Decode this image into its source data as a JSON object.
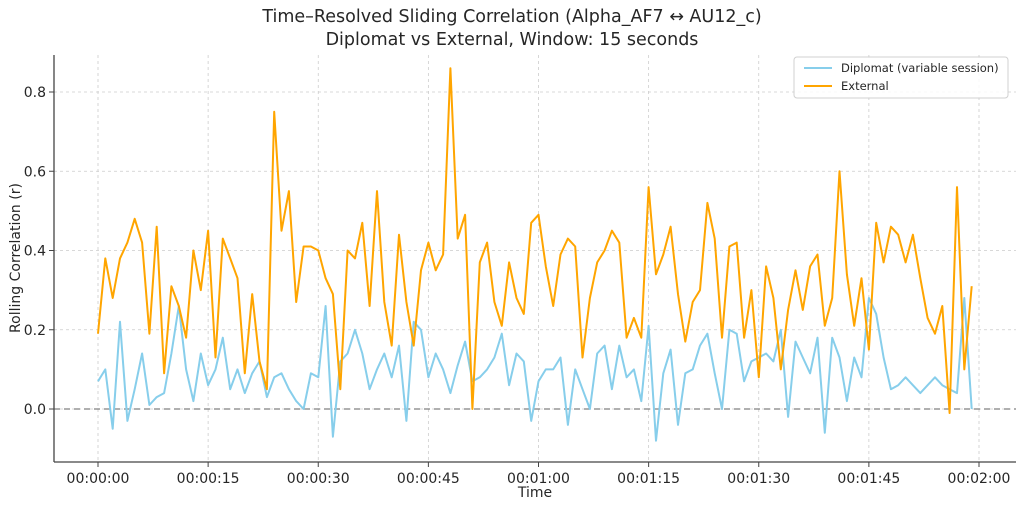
{
  "chart_data": {
    "type": "line",
    "title": "Time–Resolved Sliding Correlation (Alpha_AF7 ↔ AU12_c)",
    "subtitle": "Diplomat vs External, Window: 15 seconds",
    "xlabel": "Time",
    "ylabel": "Rolling Correlation (r)",
    "xlim_seconds": [
      -5.9,
      125.8
    ],
    "ylim": [
      -0.13,
      0.9
    ],
    "x_ticks": [
      "00:00:00",
      "00:00:15",
      "00:00:30",
      "00:00:45",
      "00:01:00",
      "00:01:15",
      "00:01:30",
      "00:01:45",
      "00:02:00"
    ],
    "x_tick_seconds": [
      0,
      15,
      30,
      45,
      60,
      75,
      90,
      105,
      120
    ],
    "y_ticks": [
      "0.0",
      "0.2",
      "0.4",
      "0.6",
      "0.8"
    ],
    "y_tick_values": [
      0.0,
      0.2,
      0.4,
      0.6,
      0.8
    ],
    "grid": true,
    "reference_line": {
      "y": 0.0,
      "style": "dashed",
      "color": "#808080"
    },
    "legend_position": "upper right",
    "x_seconds": [
      0,
      1,
      2,
      3,
      4,
      5,
      6,
      7,
      8,
      9,
      10,
      11,
      12,
      13,
      14,
      15,
      16,
      17,
      18,
      19,
      20,
      21,
      22,
      23,
      24,
      25,
      26,
      27,
      28,
      29,
      30,
      31,
      32,
      33,
      34,
      35,
      36,
      37,
      38,
      39,
      40,
      41,
      42,
      43,
      44,
      45,
      46,
      47,
      48,
      49,
      50,
      51,
      52,
      53,
      54,
      55,
      56,
      57,
      58,
      59,
      60,
      61,
      62,
      63,
      64,
      65,
      66,
      67,
      68,
      69,
      70,
      71,
      72,
      73,
      74,
      75,
      76,
      77,
      78,
      79,
      80,
      81,
      82,
      83,
      84,
      85,
      86,
      87,
      88,
      89,
      90,
      91,
      92,
      93,
      94,
      95,
      96,
      97,
      98,
      99,
      100,
      101,
      102,
      103,
      104,
      105,
      106,
      107,
      108,
      109,
      110,
      111,
      112,
      113,
      114,
      115,
      116,
      117,
      118,
      119
    ],
    "series": [
      {
        "name": "Diplomat (variable session)",
        "color": "#87CEEB",
        "values": [
          0.07,
          0.1,
          -0.05,
          0.22,
          -0.03,
          0.05,
          0.14,
          0.01,
          0.03,
          0.04,
          0.14,
          0.26,
          0.1,
          0.02,
          0.14,
          0.06,
          0.1,
          0.18,
          0.05,
          0.1,
          0.04,
          0.09,
          0.12,
          0.03,
          0.08,
          0.09,
          0.05,
          0.02,
          0.0,
          0.09,
          0.08,
          0.26,
          -0.07,
          0.12,
          0.14,
          0.2,
          0.14,
          0.05,
          0.1,
          0.14,
          0.08,
          0.16,
          -0.03,
          0.22,
          0.2,
          0.08,
          0.14,
          0.1,
          0.04,
          0.11,
          0.17,
          0.07,
          0.08,
          0.1,
          0.13,
          0.19,
          0.06,
          0.14,
          0.12,
          -0.03,
          0.07,
          0.1,
          0.1,
          0.13,
          -0.04,
          0.1,
          0.05,
          0.0,
          0.14,
          0.16,
          0.05,
          0.16,
          0.08,
          0.1,
          0.02,
          0.21,
          -0.08,
          0.09,
          0.15,
          -0.04,
          0.09,
          0.1,
          0.16,
          0.19,
          0.09,
          0.0,
          0.2,
          0.19,
          0.07,
          0.12,
          0.13,
          0.14,
          0.12,
          0.2,
          -0.02,
          0.17,
          0.13,
          0.09,
          0.18,
          -0.06,
          0.18,
          0.13,
          0.02,
          0.13,
          0.08,
          0.28,
          0.24,
          0.13,
          0.05,
          0.06,
          0.08,
          0.06,
          0.04,
          0.06,
          0.08,
          0.06,
          0.05,
          0.04,
          0.28,
          0.0
        ]
      },
      {
        "name": "External",
        "color": "#FFA500",
        "values": [
          0.19,
          0.38,
          0.28,
          0.38,
          0.42,
          0.48,
          0.42,
          0.19,
          0.46,
          0.09,
          0.31,
          0.26,
          0.18,
          0.4,
          0.3,
          0.45,
          0.13,
          0.43,
          0.38,
          0.33,
          0.09,
          0.29,
          0.12,
          0.05,
          0.75,
          0.45,
          0.55,
          0.27,
          0.41,
          0.41,
          0.4,
          0.33,
          0.29,
          0.05,
          0.4,
          0.38,
          0.47,
          0.26,
          0.55,
          0.27,
          0.16,
          0.44,
          0.27,
          0.16,
          0.35,
          0.42,
          0.35,
          0.39,
          0.86,
          0.43,
          0.49,
          0.0,
          0.37,
          0.42,
          0.27,
          0.21,
          0.37,
          0.28,
          0.24,
          0.47,
          0.49,
          0.36,
          0.26,
          0.39,
          0.43,
          0.41,
          0.13,
          0.28,
          0.37,
          0.4,
          0.45,
          0.42,
          0.18,
          0.23,
          0.18,
          0.56,
          0.34,
          0.39,
          0.46,
          0.29,
          0.17,
          0.27,
          0.3,
          0.52,
          0.43,
          0.18,
          0.41,
          0.42,
          0.18,
          0.3,
          0.08,
          0.36,
          0.28,
          0.1,
          0.25,
          0.35,
          0.25,
          0.36,
          0.39,
          0.21,
          0.28,
          0.6,
          0.34,
          0.21,
          0.33,
          0.15,
          0.47,
          0.37,
          0.46,
          0.44,
          0.37,
          0.44,
          0.33,
          0.23,
          0.19,
          0.26,
          -0.01,
          0.56,
          0.1,
          0.31
        ]
      }
    ]
  }
}
